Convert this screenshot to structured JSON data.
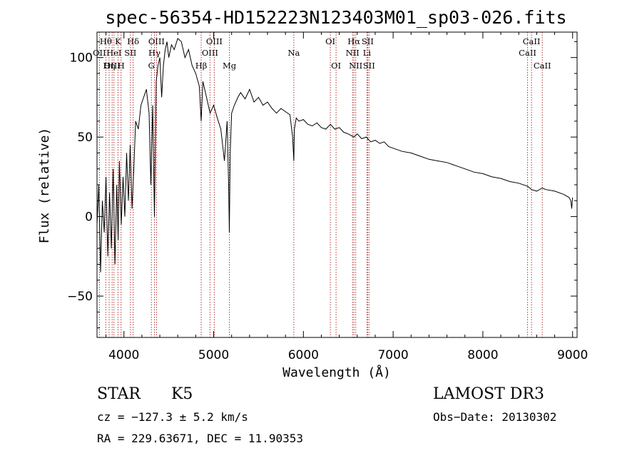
{
  "chart_data": {
    "type": "line",
    "title": "spec-56354-HD152223N123403M01_sp03-026.fits",
    "xlabel": "Wavelength (Å)",
    "ylabel": "Flux (relative)",
    "xlim": [
      3700,
      9050
    ],
    "ylim": [
      -76,
      116
    ],
    "xticks": [
      4000,
      5000,
      6000,
      7000,
      8000,
      9000
    ],
    "yticks": [
      -50,
      0,
      50,
      100
    ],
    "grid": false,
    "series": [
      {
        "name": "flux",
        "x": [
          3700,
          3720,
          3740,
          3760,
          3780,
          3800,
          3820,
          3840,
          3860,
          3880,
          3900,
          3920,
          3935,
          3950,
          3970,
          3990,
          4010,
          4030,
          4050,
          4070,
          4090,
          4110,
          4130,
          4160,
          4190,
          4220,
          4250,
          4280,
          4300,
          4320,
          4340,
          4360,
          4380,
          4400,
          4420,
          4440,
          4460,
          4480,
          4500,
          4530,
          4560,
          4600,
          4640,
          4680,
          4720,
          4760,
          4800,
          4840,
          4861,
          4880,
          4920,
          4960,
          5000,
          5040,
          5080,
          5120,
          5150,
          5167,
          5175,
          5184,
          5200,
          5230,
          5270,
          5300,
          5350,
          5400,
          5450,
          5500,
          5550,
          5600,
          5650,
          5700,
          5750,
          5800,
          5850,
          5880,
          5893,
          5900,
          5920,
          5950,
          6000,
          6050,
          6100,
          6150,
          6200,
          6250,
          6300,
          6350,
          6400,
          6450,
          6500,
          6563,
          6600,
          6650,
          6700,
          6750,
          6800,
          6850,
          6900,
          6950,
          7000,
          7100,
          7200,
          7300,
          7400,
          7500,
          7600,
          7700,
          7800,
          7900,
          8000,
          8100,
          8200,
          8300,
          8400,
          8500,
          8542,
          8600,
          8662,
          8700,
          8800,
          8900,
          8960,
          8980,
          8990,
          9000
        ],
        "y": [
          -5,
          20,
          -35,
          10,
          -10,
          25,
          -25,
          15,
          -20,
          30,
          -30,
          20,
          -15,
          35,
          -5,
          25,
          0,
          40,
          10,
          45,
          5,
          30,
          60,
          55,
          70,
          75,
          80,
          65,
          20,
          70,
          0,
          85,
          95,
          100,
          75,
          95,
          105,
          110,
          100,
          108,
          105,
          112,
          110,
          100,
          105,
          95,
          90,
          82,
          60,
          85,
          75,
          65,
          70,
          62,
          55,
          35,
          60,
          20,
          -10,
          40,
          65,
          70,
          75,
          78,
          74,
          80,
          72,
          75,
          70,
          72,
          68,
          65,
          68,
          66,
          64,
          50,
          35,
          55,
          62,
          60,
          61,
          58,
          57,
          59,
          56,
          55,
          58,
          55,
          56,
          53,
          52,
          50,
          52,
          49,
          50,
          47,
          48,
          46,
          47,
          44,
          43,
          41,
          40,
          38,
          36,
          35,
          34,
          32,
          30,
          28,
          27,
          25,
          24,
          22,
          21,
          19,
          17,
          16,
          18,
          17,
          16,
          14,
          12,
          10,
          5,
          12
        ]
      }
    ],
    "lines": [
      {
        "name": "OII",
        "wl": 3727,
        "row": 2
      },
      {
        "name": "Hθ",
        "wl": 3798,
        "row": 1
      },
      {
        "name": "OIII",
        "wl": 3869,
        "row": 3
      },
      {
        "name": "Hη",
        "wl": 3835,
        "row": 3
      },
      {
        "name": "HeI",
        "wl": 3889,
        "row": 2
      },
      {
        "name": "K",
        "wl": 3934,
        "row": 1
      },
      {
        "name": "SII",
        "wl": 4072,
        "row": 2
      },
      {
        "name": "H",
        "wl": 3968,
        "row": 3
      },
      {
        "name": "Hδ",
        "wl": 4102,
        "row": 1
      },
      {
        "name": "OIII",
        "wl": 4363,
        "row": 1
      },
      {
        "name": "Hγ",
        "wl": 4340,
        "row": 2
      },
      {
        "name": "G",
        "wl": 4306,
        "row": 3
      },
      {
        "name": "OIII",
        "wl": 5007,
        "row": 1
      },
      {
        "name": "OIII",
        "wl": 4959,
        "row": 2
      },
      {
        "name": "Hβ",
        "wl": 4861,
        "row": 3
      },
      {
        "name": "Mg",
        "wl": 5175,
        "row": 3
      },
      {
        "name": "Na",
        "wl": 5893,
        "row": 2
      },
      {
        "name": "OI",
        "wl": 6300,
        "row": 1
      },
      {
        "name": "OI",
        "wl": 6364,
        "row": 3
      },
      {
        "name": "Hα",
        "wl": 6563,
        "row": 1
      },
      {
        "name": "NII",
        "wl": 6548,
        "row": 2
      },
      {
        "name": "NII",
        "wl": 6583,
        "row": 3
      },
      {
        "name": "SII",
        "wl": 6716,
        "row": 1
      },
      {
        "name": "Li",
        "wl": 6708,
        "row": 2
      },
      {
        "name": "SII",
        "wl": 6731,
        "row": 3
      },
      {
        "name": "CaII",
        "wl": 8542,
        "row": 1
      },
      {
        "name": "CaII",
        "wl": 8498,
        "row": 2
      },
      {
        "name": "CaII",
        "wl": 8662,
        "row": 3
      }
    ]
  },
  "info": {
    "object_class": "STAR",
    "subclass": "K5",
    "survey": "LAMOST DR3",
    "cz": "cz = −127.3 ± 5.2 km/s",
    "obs_date": "Obs−Date: 20130302",
    "coords": "RA = 229.63671, DEC =  11.90353"
  },
  "colors": {
    "spectrum": "#000000",
    "marker_line": "#b03030",
    "axis": "#000000"
  }
}
